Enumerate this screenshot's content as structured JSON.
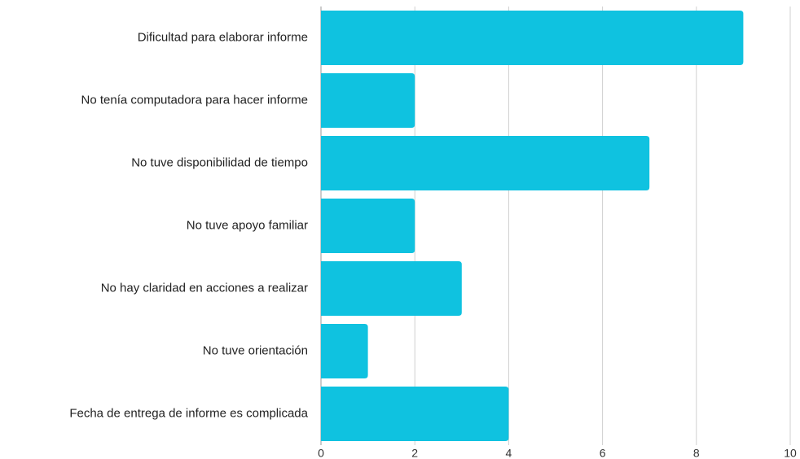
{
  "chart_data": {
    "type": "bar",
    "orientation": "horizontal",
    "categories": [
      "Dificultad para elaborar informe",
      "No tenía computadora para hacer informe",
      "No tuve disponibilidad de tiempo",
      "No tuve apoyo familiar",
      "No hay claridad en acciones a realizar",
      "No tuve orientación",
      "Fecha de entrega de informe es complicada"
    ],
    "values": [
      9,
      2,
      7,
      2,
      3,
      1,
      4
    ],
    "color": "#0fc2e0",
    "xlim": [
      0,
      10
    ],
    "xticks": [
      0,
      2,
      4,
      6,
      8,
      10
    ],
    "grid": true
  }
}
